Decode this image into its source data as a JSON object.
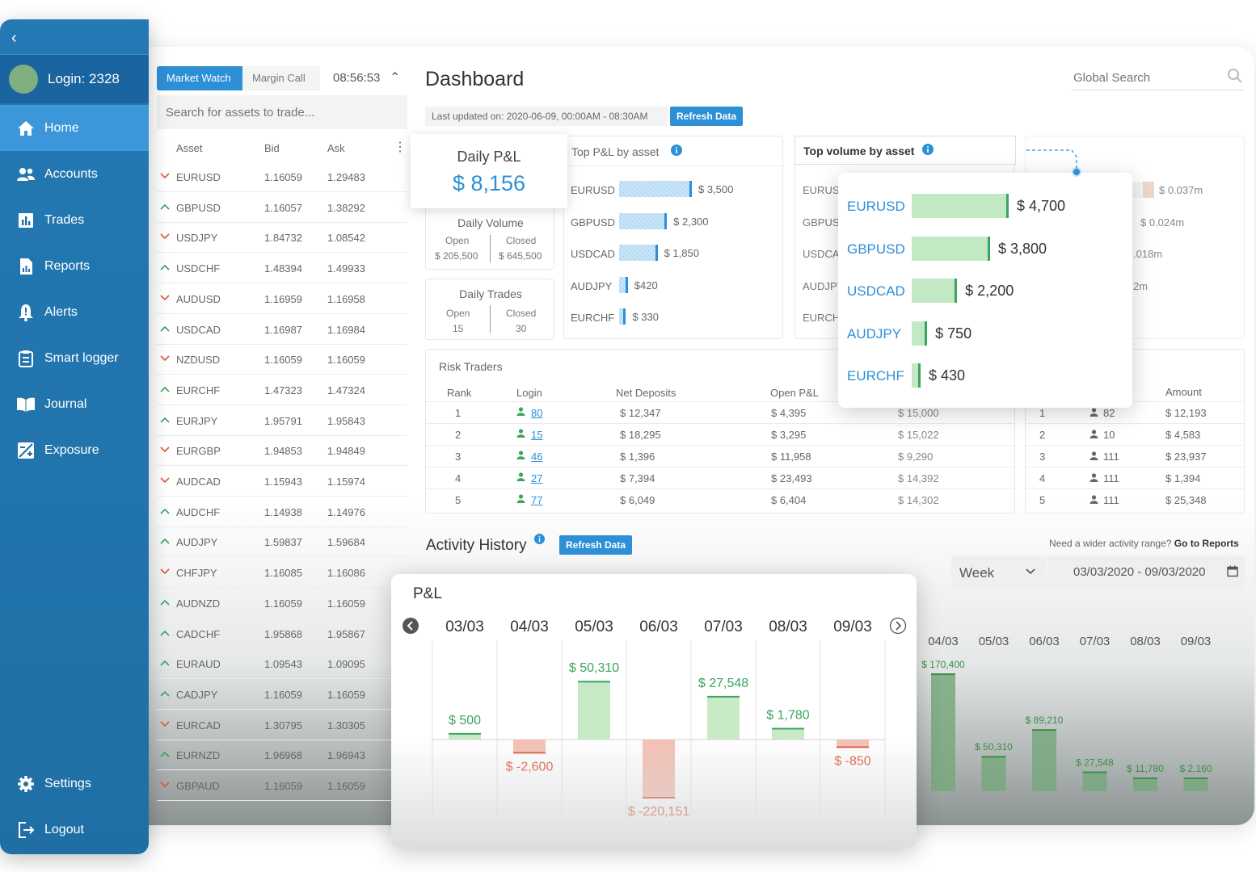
{
  "sidebar": {
    "login": "Login: 2328",
    "items": [
      {
        "label": "Home",
        "icon": "home-icon"
      },
      {
        "label": "Accounts",
        "icon": "users-icon"
      },
      {
        "label": "Trades",
        "icon": "bar-chart-icon"
      },
      {
        "label": "Reports",
        "icon": "report-icon"
      },
      {
        "label": "Alerts",
        "icon": "bell-icon"
      },
      {
        "label": "Smart logger",
        "icon": "clipboard-icon"
      },
      {
        "label": "Journal",
        "icon": "book-icon"
      },
      {
        "label": "Exposure",
        "icon": "exposure-icon"
      }
    ],
    "settings": "Settings",
    "logout": "Logout"
  },
  "market_watch": {
    "tabs": [
      "Market Watch",
      "Margin Call"
    ],
    "time": "08:56:53",
    "search_placeholder": "Search for assets to trade...",
    "columns": [
      "Asset",
      "Bid",
      "Ask"
    ],
    "rows": [
      {
        "dir": "down",
        "sym": "EURUSD",
        "bid": "1.16059",
        "ask": "1.29483"
      },
      {
        "dir": "up",
        "sym": "GBPUSD",
        "bid": "1.16057",
        "ask": "1.38292"
      },
      {
        "dir": "down",
        "sym": "USDJPY",
        "bid": "1.84732",
        "ask": "1.08542"
      },
      {
        "dir": "up",
        "sym": "USDCHF",
        "bid": "1.48394",
        "ask": "1.49933"
      },
      {
        "dir": "down",
        "sym": "AUDUSD",
        "bid": "1.16959",
        "ask": "1.16958"
      },
      {
        "dir": "up",
        "sym": "USDCAD",
        "bid": "1.16987",
        "ask": "1.16984"
      },
      {
        "dir": "down",
        "sym": "NZDUSD",
        "bid": "1.16059",
        "ask": "1.16059"
      },
      {
        "dir": "up",
        "sym": "EURCHF",
        "bid": "1.47323",
        "ask": "1.47324"
      },
      {
        "dir": "up",
        "sym": "EURJPY",
        "bid": "1.95791",
        "ask": "1.95843"
      },
      {
        "dir": "down",
        "sym": "EURGBP",
        "bid": "1.94853",
        "ask": "1.94849"
      },
      {
        "dir": "down",
        "sym": "AUDCAD",
        "bid": "1.15943",
        "ask": "1.15974"
      },
      {
        "dir": "up",
        "sym": "AUDCHF",
        "bid": "1.14938",
        "ask": "1.14976"
      },
      {
        "dir": "up",
        "sym": "AUDJPY",
        "bid": "1.59837",
        "ask": "1.59684"
      },
      {
        "dir": "down",
        "sym": "CHFJPY",
        "bid": "1.16085",
        "ask": "1.16086"
      },
      {
        "dir": "up",
        "sym": "AUDNZD",
        "bid": "1.16059",
        "ask": "1.16059"
      },
      {
        "dir": "up",
        "sym": "CADCHF",
        "bid": "1.95868",
        "ask": "1.95867"
      },
      {
        "dir": "up",
        "sym": "EURAUD",
        "bid": "1.09543",
        "ask": "1.09095"
      },
      {
        "dir": "up",
        "sym": "CADJPY",
        "bid": "1.16059",
        "ask": "1.16059"
      },
      {
        "dir": "down",
        "sym": "EURCAD",
        "bid": "1.30795",
        "ask": "1.30305"
      },
      {
        "dir": "up",
        "sym": "EURNZD",
        "bid": "1.96968",
        "ask": "1.96943"
      },
      {
        "dir": "down",
        "sym": "GBPAUD",
        "bid": "1.16059",
        "ask": "1.16059"
      }
    ]
  },
  "dashboard": {
    "title": "Dashboard",
    "global_search": "Global Search",
    "last_updated": "Last updated on: 2020-06-09, 00:00AM - 08:30AM",
    "refresh": "Refresh Data"
  },
  "daily_pl": {
    "title": "Daily P&L",
    "value": "$ 8,156"
  },
  "daily_volume": {
    "title": "Daily Volume",
    "open_label": "Open",
    "closed_label": "Closed",
    "open": "$ 205,500",
    "closed": "$ 645,500"
  },
  "daily_trades": {
    "title": "Daily Trades",
    "open_label": "Open",
    "closed_label": "Closed",
    "open": "15",
    "closed": "30"
  },
  "top_pl": {
    "title": "Top P&L by asset",
    "rows": [
      {
        "sym": "EURUSD",
        "value": 3500,
        "label": "$ 3,500"
      },
      {
        "sym": "GBPUSD",
        "value": 2300,
        "label": "$ 2,300"
      },
      {
        "sym": "USDCAD",
        "value": 1850,
        "label": "$ 1,850"
      },
      {
        "sym": "AUDJPY",
        "value": 420,
        "label": "$420"
      },
      {
        "sym": "EURCHF",
        "value": 330,
        "label": "$ 330"
      }
    ]
  },
  "top_volume": {
    "title": "Top volume by asset",
    "behind_syms": [
      "EURUSD",
      "GBPUSD",
      "USDCAD",
      "AUDJPY",
      "EURCHF"
    ],
    "rows": [
      {
        "sym": "EURUSD",
        "value": 4700,
        "label": "$ 4,700"
      },
      {
        "sym": "GBPUSD",
        "value": 3800,
        "label": "$ 3,800"
      },
      {
        "sym": "USDCAD",
        "value": 2200,
        "label": "$ 2,200"
      },
      {
        "sym": "AUDJPY",
        "value": 750,
        "label": "$ 750"
      },
      {
        "sym": "EURCHF",
        "value": 430,
        "label": "$ 430"
      }
    ]
  },
  "faded_card": {
    "values": [
      "$ 0.037m",
      "$ 0.024m",
      ".018m",
      "2m"
    ]
  },
  "risk_traders": {
    "title": "Risk Traders",
    "columns": [
      "Rank",
      "Login",
      "Net Deposits",
      "Open P&L"
    ],
    "rows": [
      {
        "rank": "1",
        "login": "80",
        "net": "$ 12,347",
        "open": "$ 4,395",
        "extra": "$ 15,000"
      },
      {
        "rank": "2",
        "login": "15",
        "net": "$ 18,295",
        "open": "$ 3,295",
        "extra": "$ 15,022"
      },
      {
        "rank": "3",
        "login": "46",
        "net": "$ 1,396",
        "open": "$ 11,958",
        "extra": "$ 9,290"
      },
      {
        "rank": "4",
        "login": "27",
        "net": "$ 7,394",
        "open": "$ 23,493",
        "extra": "$ 14,392"
      },
      {
        "rank": "5",
        "login": "77",
        "net": "$ 6,049",
        "open": "$ 6,404",
        "extra": "$ 14,302"
      }
    ]
  },
  "amount_table": {
    "column": "Amount",
    "rows": [
      {
        "rank": "1",
        "login": "82",
        "amount": "$ 12,193"
      },
      {
        "rank": "2",
        "login": "10",
        "amount": "$ 4,583"
      },
      {
        "rank": "3",
        "login": "111",
        "amount": "$ 23,937"
      },
      {
        "rank": "4",
        "login": "111",
        "amount": "$ 1,394"
      },
      {
        "rank": "5",
        "login": "111",
        "amount": "$ 25,348"
      }
    ]
  },
  "activity": {
    "title": "Activity History",
    "refresh": "Refresh Data",
    "wider_prefix": "Need a wider activity range?",
    "wider_link": "Go to Reports",
    "period": "Week",
    "date_range": "03/03/2020 - 09/03/2020"
  },
  "colors": {
    "primary": "#2d8fd6",
    "sidebar": "#1f6fa6",
    "positive": "#3aa55e",
    "negative": "#e1573c"
  },
  "chart_data": [
    {
      "type": "bar",
      "title": "P&L",
      "categories": [
        "03/03",
        "04/03",
        "05/03",
        "06/03",
        "07/03",
        "08/03",
        "09/03"
      ],
      "values": [
        500,
        -2600,
        50310,
        -220151,
        27548,
        1780,
        -850
      ],
      "labels": [
        "$ 500",
        "$ -2,600",
        "$ 50,310",
        "$ -220,151",
        "$ 27,548",
        "$ 1,780",
        "$ -850"
      ]
    },
    {
      "type": "bar",
      "title": "",
      "categories": [
        "04/03",
        "05/03",
        "06/03",
        "07/03",
        "08/03",
        "09/03"
      ],
      "values": [
        170400,
        50310,
        89210,
        27548,
        11780,
        2160
      ],
      "labels": [
        "$ 170,400",
        "$ 50,310",
        "$ 89,210",
        "$ 27,548",
        "$ 11,780",
        "$ 2,160"
      ]
    }
  ]
}
